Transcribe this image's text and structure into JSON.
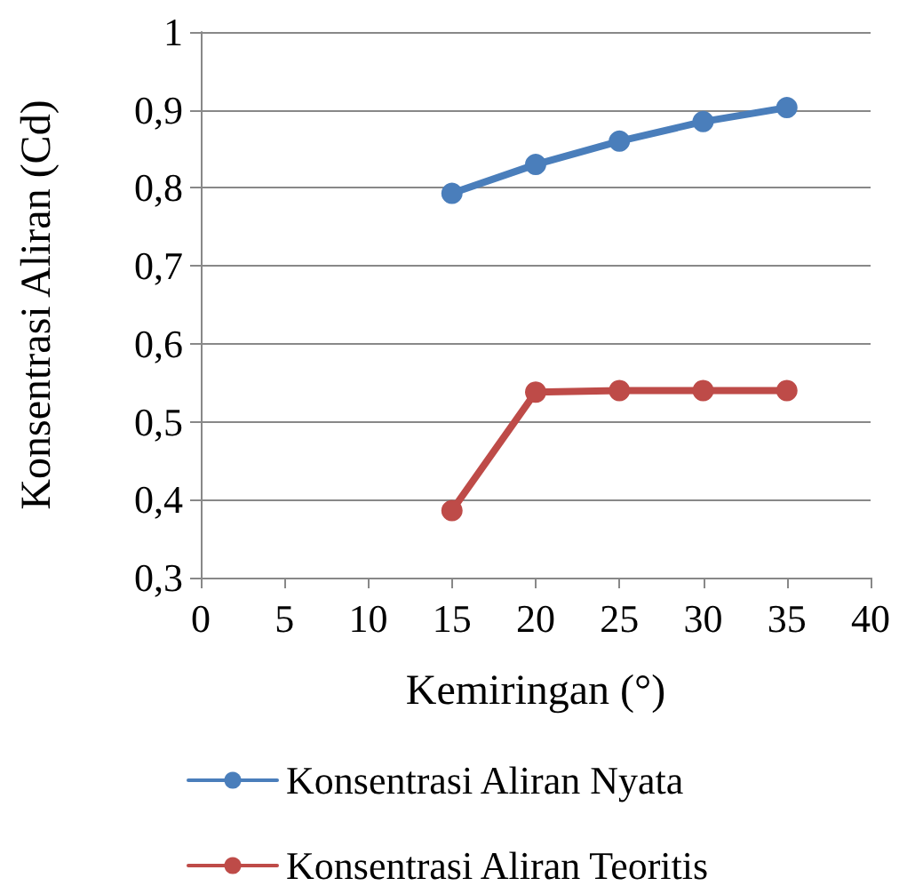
{
  "chart_data": {
    "type": "line",
    "xlabel": "Kemiringan (°)",
    "ylabel": "Konsentrasi Aliran (Cd)",
    "x": [
      15,
      20,
      25,
      30,
      35
    ],
    "series": [
      {
        "name": "Konsentrasi Aliran Nyata",
        "color": "#4a7ebb",
        "values": [
          0.793,
          0.83,
          0.86,
          0.885,
          0.903
        ]
      },
      {
        "name": "Konsentrasi Aliran Teoritis",
        "color": "#be4b48",
        "values": [
          0.386,
          0.538,
          0.54,
          0.54,
          0.54
        ]
      }
    ],
    "xlim": [
      0,
      40
    ],
    "xticks": [
      0,
      5,
      10,
      15,
      20,
      25,
      30,
      35,
      40
    ],
    "ylim": [
      0.3,
      1
    ],
    "yticks": [
      {
        "value": 0.3,
        "label": "0,3"
      },
      {
        "value": 0.4,
        "label": "0,4"
      },
      {
        "value": 0.5,
        "label": "0,5"
      },
      {
        "value": 0.6,
        "label": "0,6"
      },
      {
        "value": 0.7,
        "label": "0,7"
      },
      {
        "value": 0.8,
        "label": "0,8"
      },
      {
        "value": 0.9,
        "label": "0,9"
      },
      {
        "value": 1,
        "label": "1"
      }
    ],
    "grid": "y",
    "legend": "bottom",
    "marker": "circle",
    "line_style": "solid"
  }
}
